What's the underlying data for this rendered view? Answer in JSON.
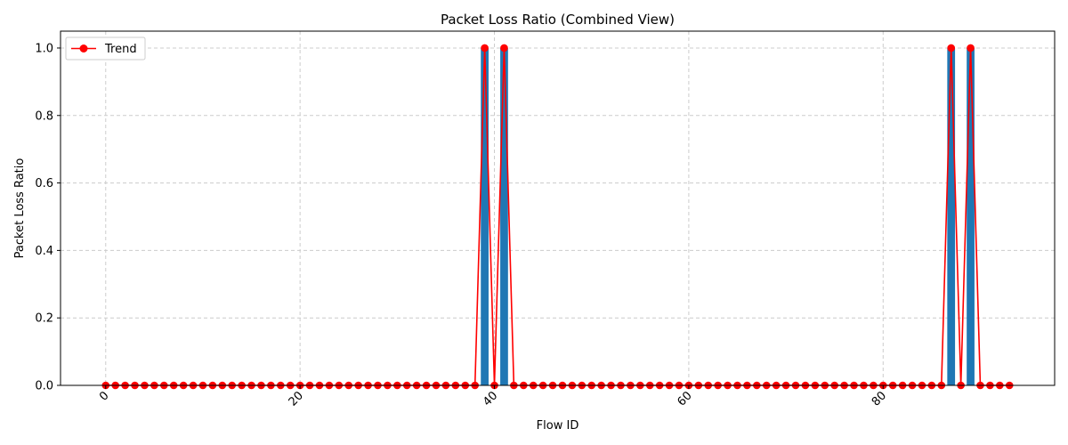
{
  "chart_data": {
    "type": "bar",
    "title": "Packet Loss Ratio (Combined View)",
    "xlabel": "Flow ID",
    "ylabel": "Packet Loss Ratio",
    "x": [
      0,
      1,
      2,
      3,
      4,
      5,
      6,
      7,
      8,
      9,
      10,
      11,
      12,
      13,
      14,
      15,
      16,
      17,
      18,
      19,
      20,
      21,
      22,
      23,
      24,
      25,
      26,
      27,
      28,
      29,
      30,
      31,
      32,
      33,
      34,
      35,
      36,
      37,
      38,
      39,
      40,
      41,
      42,
      43,
      44,
      45,
      46,
      47,
      48,
      49,
      50,
      51,
      52,
      53,
      54,
      55,
      56,
      57,
      58,
      59,
      60,
      61,
      62,
      63,
      64,
      65,
      66,
      67,
      68,
      69,
      70,
      71,
      72,
      73,
      74,
      75,
      76,
      77,
      78,
      79,
      80,
      81,
      82,
      83,
      84,
      85,
      86,
      87,
      88,
      89,
      90,
      91,
      92,
      93
    ],
    "series": [
      {
        "kind": "bar",
        "color": "#1f77b4",
        "values": [
          0,
          0,
          0,
          0,
          0,
          0,
          0,
          0,
          0,
          0,
          0,
          0,
          0,
          0,
          0,
          0,
          0,
          0,
          0,
          0,
          0,
          0,
          0,
          0,
          0,
          0,
          0,
          0,
          0,
          0,
          0,
          0,
          0,
          0,
          0,
          0,
          0,
          0,
          0,
          1,
          0,
          1,
          0,
          0,
          0,
          0,
          0,
          0,
          0,
          0,
          0,
          0,
          0,
          0,
          0,
          0,
          0,
          0,
          0,
          0,
          0,
          0,
          0,
          0,
          0,
          0,
          0,
          0,
          0,
          0,
          0,
          0,
          0,
          0,
          0,
          0,
          0,
          0,
          0,
          0,
          0,
          0,
          0,
          0,
          0,
          0,
          0,
          1,
          0,
          1,
          0,
          0,
          0,
          0
        ]
      },
      {
        "kind": "line",
        "name": "Trend",
        "color": "#ff0000",
        "values": [
          0,
          0,
          0,
          0,
          0,
          0,
          0,
          0,
          0,
          0,
          0,
          0,
          0,
          0,
          0,
          0,
          0,
          0,
          0,
          0,
          0,
          0,
          0,
          0,
          0,
          0,
          0,
          0,
          0,
          0,
          0,
          0,
          0,
          0,
          0,
          0,
          0,
          0,
          0,
          1,
          0,
          1,
          0,
          0,
          0,
          0,
          0,
          0,
          0,
          0,
          0,
          0,
          0,
          0,
          0,
          0,
          0,
          0,
          0,
          0,
          0,
          0,
          0,
          0,
          0,
          0,
          0,
          0,
          0,
          0,
          0,
          0,
          0,
          0,
          0,
          0,
          0,
          0,
          0,
          0,
          0,
          0,
          0,
          0,
          0,
          0,
          0,
          1,
          0,
          1,
          0,
          0,
          0,
          0
        ]
      }
    ],
    "xlim": [
      -4.65,
      97.65
    ],
    "ylim": [
      0,
      1.05
    ],
    "xticks": [
      "0",
      "20",
      "40",
      "60",
      "80"
    ],
    "xtick_values": [
      0,
      20,
      40,
      60,
      80
    ],
    "yticks": [
      "0.0",
      "0.2",
      "0.4",
      "0.6",
      "0.8",
      "1.0"
    ],
    "ytick_values": [
      0,
      0.2,
      0.4,
      0.6,
      0.8,
      1.0
    ],
    "grid": true,
    "legend": "top-left",
    "xtick_rotation": 45
  }
}
